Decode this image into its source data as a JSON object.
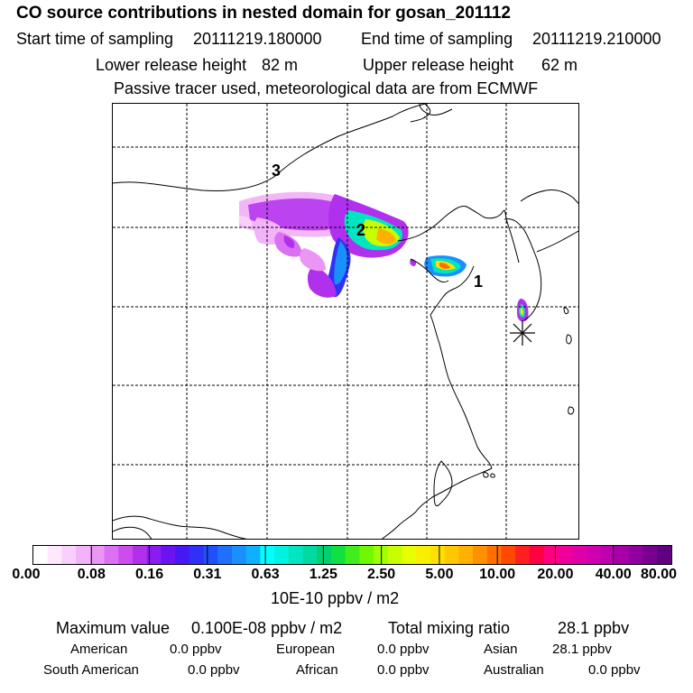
{
  "header": {
    "title": "CO  source contributions in nested domain for gosan_201112",
    "start_label": "Start time of sampling",
    "start_value": "20111219.180000",
    "end_label": "End time of sampling",
    "end_value": "20111219.210000",
    "lower_label": "Lower release height",
    "lower_value": "82 m",
    "upper_label": "Upper release height",
    "upper_value": "62 m",
    "note": "Passive tracer used, meteorological data are from ECMWF"
  },
  "map": {
    "labels": [
      "1",
      "2",
      "3"
    ],
    "receptor_marker": "asterisk-icon"
  },
  "colorbar": {
    "ticks": [
      "0.00",
      "0.08",
      "0.16",
      "0.31",
      "0.63",
      "1.25",
      "2.50",
      "5.00",
      "10.00",
      "20.00",
      "40.00",
      "80.00"
    ],
    "colors": [
      "#ffffff",
      "#fde8fd",
      "#f9d0fb",
      "#f2b3f8",
      "#e996f5",
      "#dc70f3",
      "#cc4cf0",
      "#b030ee",
      "#8a1cf0",
      "#6a14f2",
      "#4818f4",
      "#3030f8",
      "#2050fc",
      "#1f70fd",
      "#1a90fe",
      "#10b0ff",
      "#00ffff",
      "#00f2e0",
      "#00e6c0",
      "#00daa0",
      "#00d070",
      "#10e040",
      "#40ee20",
      "#70f800",
      "#a0ff00",
      "#c8ff00",
      "#e8ff00",
      "#f8f000",
      "#ffe000",
      "#ffc800",
      "#ffb000",
      "#ff9000",
      "#ff7000",
      "#ff4800",
      "#ff2020",
      "#ff0040",
      "#ff0080",
      "#f00098",
      "#e000a8",
      "#d000b0",
      "#c000b0",
      "#a800a8",
      "#9000a0",
      "#780090",
      "#600080"
    ],
    "unit": "10E-10 ppbv / m2"
  },
  "stats": {
    "max_label": "Maximum value",
    "max_value": "0.100E-08 ppbv / m2",
    "total_label": "Total mixing ratio",
    "total_value": "28.1 ppbv",
    "american_label": "American",
    "american_value": "0.0 ppbv",
    "european_label": "European",
    "european_value": "0.0 ppbv",
    "asian_label": "Asian",
    "asian_value": "28.1 ppbv",
    "south_american_label": "South American",
    "south_american_value": "0.0 ppbv",
    "african_label": "African",
    "african_value": "0.0 ppbv",
    "australian_label": "Australian",
    "australian_value": "0.0 ppbv"
  }
}
